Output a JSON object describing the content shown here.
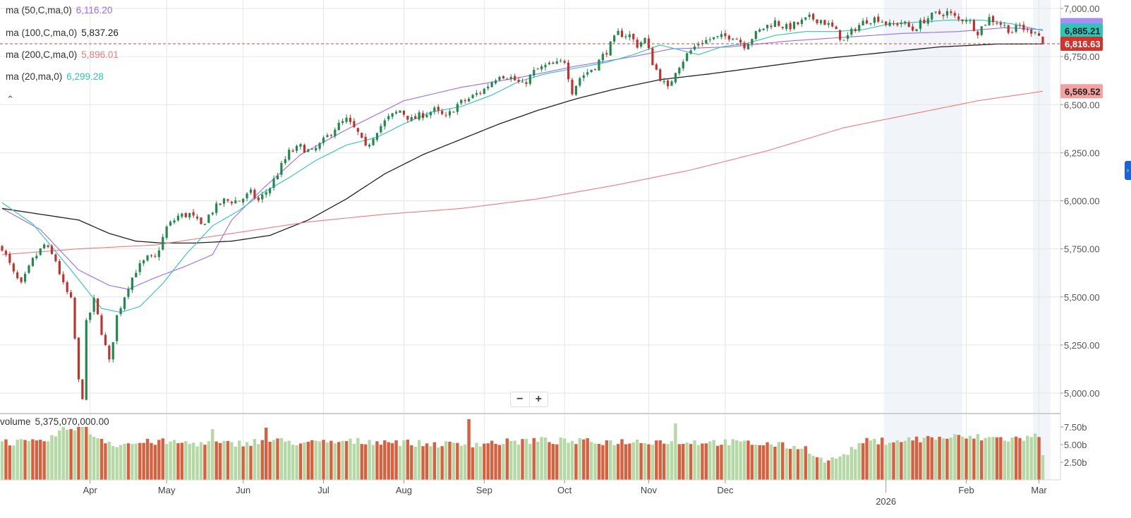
{
  "legend": [
    {
      "label": "ma (50,C,ma,0)",
      "value": "6,116.20",
      "color": "#9b6bf2"
    },
    {
      "label": "ma (100,C,ma,0)",
      "value": "5,837.26",
      "color": "#222222"
    },
    {
      "label": "ma (200,C,ma,0)",
      "value": "5,896.01",
      "color": "#f07c7c"
    },
    {
      "label": "ma (20,ma,0)",
      "value": "6,299.28",
      "color": "#2ec4b6"
    }
  ],
  "volume_legend": {
    "label": "volume",
    "value": "5,375,070,000.00"
  },
  "zoom": {
    "minus": "−",
    "plus": "+"
  },
  "collapse_icon": "chevron-up",
  "colors": {
    "up": "#1f8a4c",
    "down": "#c0332d",
    "vol_up": "#b5d9a5",
    "vol_down": "#d9603f",
    "shade": "#f1f4f8"
  },
  "price_tags": [
    {
      "value": 6885.21,
      "text": "6,885.21",
      "bg": "#2ec4b6",
      "fg": "#222222"
    },
    {
      "value": 6816.63,
      "text": "6,816.63",
      "bg": "#d0342c",
      "fg": "#ffffff"
    },
    {
      "value": 6569.52,
      "text": "6,569.52",
      "bg": "#f7a0a0",
      "fg": "#222222"
    }
  ],
  "chart_data": {
    "type": "candlestick",
    "y_ticks": [
      "7,000.00",
      "6,750.00",
      "6,500.00",
      "6,250.00",
      "6,000.00",
      "5,750.00",
      "5,500.00",
      "5,250.00",
      "5,000.00"
    ],
    "y_tick_values": [
      7000,
      6750,
      6500,
      6250,
      6000,
      5750,
      5500,
      5250,
      5000
    ],
    "ylim": [
      4920,
      7030
    ],
    "volume_ticks": [
      "7.50b",
      "5.00b",
      "2.50b"
    ],
    "volume_tick_values": [
      7.5,
      5.0,
      2.5
    ],
    "x_months": [
      "Apr",
      "May",
      "Jun",
      "Jul",
      "Aug",
      "Sep",
      "Oct",
      "Nov",
      "Dec",
      "Feb",
      "Mar"
    ],
    "x_month_days": [
      23,
      43,
      63,
      84,
      105,
      126,
      147,
      169,
      189,
      252,
      271
    ],
    "year_label": "2026",
    "year_day": 231,
    "n_days": 274,
    "current_price": 6816.63,
    "shaded_ranges": [
      [
        231,
        251
      ],
      [
        270,
        274
      ]
    ],
    "anchors": [
      [
        0,
        5760
      ],
      [
        3,
        5620
      ],
      [
        5,
        5560
      ],
      [
        8,
        5690
      ],
      [
        11,
        5770
      ],
      [
        14,
        5690
      ],
      [
        16,
        5560
      ],
      [
        18,
        5480
      ],
      [
        19,
        5280
      ],
      [
        20,
        5060
      ],
      [
        21,
        4985
      ],
      [
        22,
        5360
      ],
      [
        24,
        5480
      ],
      [
        26,
        5320
      ],
      [
        28,
        5160
      ],
      [
        30,
        5400
      ],
      [
        33,
        5560
      ],
      [
        35,
        5640
      ],
      [
        38,
        5700
      ],
      [
        40,
        5700
      ],
      [
        43,
        5860
      ],
      [
        46,
        5920
      ],
      [
        49,
        5930
      ],
      [
        52,
        5870
      ],
      [
        55,
        5950
      ],
      [
        58,
        6000
      ],
      [
        62,
        6000
      ],
      [
        65,
        6040
      ],
      [
        67,
        6000
      ],
      [
        70,
        6070
      ],
      [
        73,
        6180
      ],
      [
        75,
        6250
      ],
      [
        78,
        6280
      ],
      [
        81,
        6250
      ],
      [
        84,
        6310
      ],
      [
        87,
        6380
      ],
      [
        90,
        6420
      ],
      [
        93,
        6350
      ],
      [
        95,
        6270
      ],
      [
        98,
        6370
      ],
      [
        101,
        6430
      ],
      [
        104,
        6470
      ],
      [
        107,
        6420
      ],
      [
        110,
        6450
      ],
      [
        113,
        6470
      ],
      [
        116,
        6430
      ],
      [
        119,
        6500
      ],
      [
        122,
        6530
      ],
      [
        126,
        6580
      ],
      [
        130,
        6660
      ],
      [
        133,
        6640
      ],
      [
        136,
        6600
      ],
      [
        139,
        6670
      ],
      [
        142,
        6700
      ],
      [
        145,
        6710
      ],
      [
        147,
        6730
      ],
      [
        149,
        6570
      ],
      [
        151,
        6640
      ],
      [
        153,
        6670
      ],
      [
        155,
        6700
      ],
      [
        158,
        6780
      ],
      [
        161,
        6870
      ],
      [
        164,
        6860
      ],
      [
        166,
        6810
      ],
      [
        168,
        6840
      ],
      [
        170,
        6720
      ],
      [
        172,
        6640
      ],
      [
        174,
        6580
      ],
      [
        176,
        6680
      ],
      [
        179,
        6760
      ],
      [
        182,
        6820
      ],
      [
        185,
        6840
      ],
      [
        188,
        6850
      ],
      [
        191,
        6860
      ],
      [
        194,
        6810
      ],
      [
        196,
        6850
      ],
      [
        199,
        6900
      ],
      [
        202,
        6930
      ],
      [
        205,
        6900
      ],
      [
        208,
        6920
      ],
      [
        211,
        6950
      ],
      [
        214,
        6940
      ],
      [
        217,
        6900
      ],
      [
        220,
        6830
      ],
      [
        223,
        6900
      ],
      [
        226,
        6940
      ],
      [
        229,
        6950
      ],
      [
        232,
        6910
      ],
      [
        235,
        6930
      ],
      [
        238,
        6890
      ],
      [
        241,
        6940
      ],
      [
        244,
        6970
      ],
      [
        247,
        6980
      ],
      [
        250,
        6940
      ],
      [
        252,
        6950
      ],
      [
        255,
        6880
      ],
      [
        258,
        6950
      ],
      [
        261,
        6920
      ],
      [
        264,
        6880
      ],
      [
        266,
        6910
      ],
      [
        268,
        6880
      ],
      [
        270,
        6890
      ],
      [
        271,
        6860
      ],
      [
        272,
        6816.63
      ]
    ],
    "ma_series": [
      {
        "label": "ma 50",
        "color": "#9b6bf2",
        "pts": [
          [
            0,
            5960
          ],
          [
            10,
            5850
          ],
          [
            20,
            5640
          ],
          [
            28,
            5560
          ],
          [
            33,
            5540
          ],
          [
            40,
            5600
          ],
          [
            48,
            5660
          ],
          [
            55,
            5720
          ],
          [
            60,
            5900
          ],
          [
            68,
            6060
          ],
          [
            78,
            6240
          ],
          [
            90,
            6370
          ],
          [
            105,
            6520
          ],
          [
            120,
            6590
          ],
          [
            135,
            6640
          ],
          [
            150,
            6700
          ],
          [
            165,
            6750
          ],
          [
            175,
            6790
          ],
          [
            190,
            6800
          ],
          [
            205,
            6830
          ],
          [
            220,
            6850
          ],
          [
            235,
            6870
          ],
          [
            250,
            6880
          ],
          [
            262,
            6900
          ],
          [
            272,
            6890
          ]
        ]
      },
      {
        "label": "ma 100",
        "color": "#222222",
        "pts": [
          [
            0,
            5960
          ],
          [
            10,
            5930
          ],
          [
            20,
            5900
          ],
          [
            28,
            5830
          ],
          [
            35,
            5790
          ],
          [
            42,
            5780
          ],
          [
            50,
            5780
          ],
          [
            60,
            5790
          ],
          [
            70,
            5820
          ],
          [
            80,
            5900
          ],
          [
            90,
            6010
          ],
          [
            100,
            6140
          ],
          [
            110,
            6240
          ],
          [
            120,
            6320
          ],
          [
            130,
            6400
          ],
          [
            140,
            6470
          ],
          [
            150,
            6530
          ],
          [
            160,
            6580
          ],
          [
            172,
            6630
          ],
          [
            185,
            6660
          ],
          [
            200,
            6700
          ],
          [
            215,
            6740
          ],
          [
            230,
            6770
          ],
          [
            245,
            6800
          ],
          [
            260,
            6815
          ],
          [
            272,
            6816
          ]
        ]
      },
      {
        "label": "ma 200",
        "color": "#f07c7c",
        "pts": [
          [
            0,
            5720
          ],
          [
            20,
            5750
          ],
          [
            40,
            5770
          ],
          [
            60,
            5830
          ],
          [
            80,
            5890
          ],
          [
            100,
            5930
          ],
          [
            120,
            5960
          ],
          [
            140,
            6010
          ],
          [
            160,
            6080
          ],
          [
            180,
            6160
          ],
          [
            200,
            6260
          ],
          [
            220,
            6380
          ],
          [
            240,
            6460
          ],
          [
            255,
            6520
          ],
          [
            272,
            6569.52
          ]
        ]
      },
      {
        "label": "ma 20",
        "color": "#2ec4b6",
        "pts": [
          [
            0,
            5990
          ],
          [
            8,
            5880
          ],
          [
            18,
            5640
          ],
          [
            26,
            5440
          ],
          [
            31,
            5420
          ],
          [
            36,
            5450
          ],
          [
            42,
            5570
          ],
          [
            48,
            5720
          ],
          [
            55,
            5870
          ],
          [
            62,
            5950
          ],
          [
            68,
            6040
          ],
          [
            75,
            6120
          ],
          [
            82,
            6210
          ],
          [
            90,
            6290
          ],
          [
            98,
            6330
          ],
          [
            105,
            6400
          ],
          [
            112,
            6460
          ],
          [
            120,
            6490
          ],
          [
            128,
            6550
          ],
          [
            135,
            6620
          ],
          [
            142,
            6660
          ],
          [
            150,
            6690
          ],
          [
            158,
            6720
          ],
          [
            165,
            6760
          ],
          [
            172,
            6810
          ],
          [
            178,
            6780
          ],
          [
            182,
            6760
          ],
          [
            188,
            6800
          ],
          [
            195,
            6820
          ],
          [
            202,
            6860
          ],
          [
            210,
            6880
          ],
          [
            218,
            6880
          ],
          [
            225,
            6890
          ],
          [
            232,
            6920
          ],
          [
            240,
            6930
          ],
          [
            248,
            6940
          ],
          [
            256,
            6940
          ],
          [
            264,
            6920
          ],
          [
            272,
            6885.21
          ]
        ]
      }
    ],
    "volume_anchors": [
      [
        0,
        5.4
      ],
      [
        10,
        5.2
      ],
      [
        20,
        8.0
      ],
      [
        25,
        6.0
      ],
      [
        30,
        5.0
      ],
      [
        40,
        5.4
      ],
      [
        50,
        5.2
      ],
      [
        60,
        5.1
      ],
      [
        70,
        5.6
      ],
      [
        80,
        5.2
      ],
      [
        90,
        5.4
      ],
      [
        100,
        5.5
      ],
      [
        110,
        5.1
      ],
      [
        120,
        5.0
      ],
      [
        130,
        5.3
      ],
      [
        140,
        5.6
      ],
      [
        150,
        5.4
      ],
      [
        160,
        5.4
      ],
      [
        170,
        5.5
      ],
      [
        180,
        5.4
      ],
      [
        190,
        5.3
      ],
      [
        200,
        5.1
      ],
      [
        210,
        4.5
      ],
      [
        215,
        2.6
      ],
      [
        220,
        3.5
      ],
      [
        225,
        5.4
      ],
      [
        235,
        5.6
      ],
      [
        245,
        6.0
      ],
      [
        255,
        6.0
      ],
      [
        265,
        5.8
      ],
      [
        271,
        6.2
      ],
      [
        272,
        3.3
      ]
    ],
    "volume_spikes": [
      [
        20,
        8.6
      ],
      [
        21,
        8.3
      ],
      [
        22,
        8.0
      ],
      [
        55,
        7.2
      ],
      [
        69,
        7.4
      ],
      [
        122,
        8.6
      ],
      [
        176,
        8.0
      ]
    ],
    "volume_ylim": [
      0,
      9.2
    ]
  }
}
